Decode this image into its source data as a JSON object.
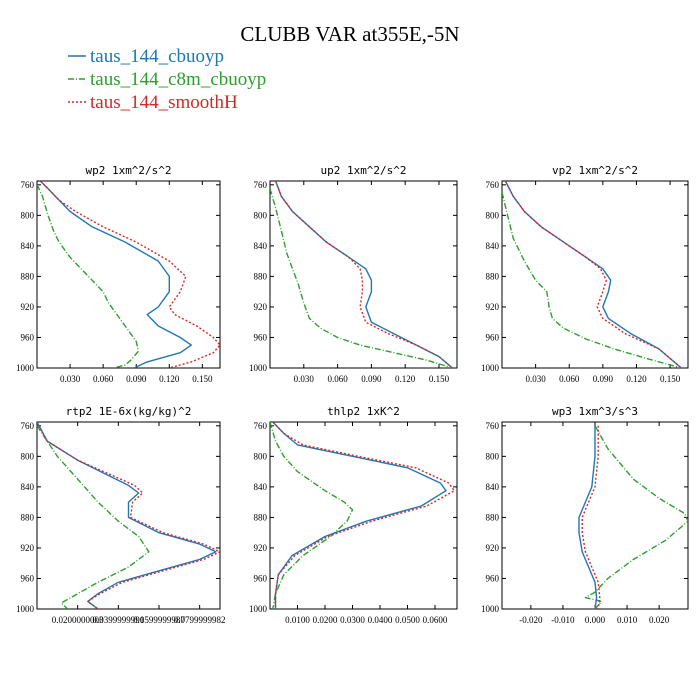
{
  "figure": {
    "title": "CLUBB VAR at355E,-5N",
    "legend": [
      {
        "label": "taus_144_cbuoyp",
        "color": "#1f77b4",
        "dash": "solid"
      },
      {
        "label": "taus_144_c8m_cbuoyp",
        "color": "#2ca02c",
        "dash": "dashdot"
      },
      {
        "label": "taus_144_smoothH",
        "color": "#d62728",
        "dash": "dotted"
      }
    ]
  },
  "chart_data": [
    {
      "type": "line",
      "title": "wp2",
      "units": "1xm^2/s^2",
      "xlim": [
        0.0,
        0.166
      ],
      "ylim": [
        755,
        1000
      ],
      "xticks": [
        0.03,
        0.06,
        0.09,
        0.12,
        0.15
      ],
      "xtick_labels": [
        "0.030",
        "0.060",
        "0.090",
        "0.120",
        "0.150"
      ],
      "yticks": [
        760,
        800,
        840,
        880,
        920,
        960,
        1000
      ],
      "series": [
        {
          "name": "taus_144_cbuoyp",
          "x": [
            0.003,
            0.01,
            0.02,
            0.03,
            0.05,
            0.08,
            0.11,
            0.12,
            0.12,
            0.11,
            0.1,
            0.11,
            0.13,
            0.14,
            0.13,
            0.1,
            0.088
          ],
          "y": [
            755,
            765,
            780,
            795,
            815,
            835,
            860,
            880,
            900,
            920,
            930,
            945,
            960,
            970,
            980,
            992,
            1000
          ]
        },
        {
          "name": "taus_144_c8m_cbuoyp",
          "x": [
            0.0,
            0.005,
            0.01,
            0.015,
            0.02,
            0.03,
            0.04,
            0.05,
            0.06,
            0.065,
            0.07,
            0.075,
            0.08,
            0.085,
            0.09,
            0.092,
            0.085,
            0.08,
            0.07
          ],
          "y": [
            760,
            775,
            800,
            820,
            835,
            855,
            870,
            885,
            900,
            915,
            925,
            935,
            945,
            955,
            965,
            978,
            990,
            996,
            1000
          ]
        },
        {
          "name": "taus_144_smoothH",
          "x": [
            0.003,
            0.01,
            0.02,
            0.035,
            0.06,
            0.09,
            0.12,
            0.135,
            0.13,
            0.12,
            0.125,
            0.145,
            0.16,
            0.166,
            0.16,
            0.14,
            0.12
          ],
          "y": [
            755,
            765,
            780,
            795,
            815,
            835,
            860,
            880,
            900,
            920,
            930,
            945,
            960,
            970,
            980,
            992,
            1000
          ]
        }
      ]
    },
    {
      "type": "line",
      "title": "up2",
      "units": "1xm^2/s^2",
      "xlim": [
        0.0,
        0.166
      ],
      "ylim": [
        755,
        1000
      ],
      "xticks": [
        0.03,
        0.06,
        0.09,
        0.12,
        0.15
      ],
      "xtick_labels": [
        "0.030",
        "0.060",
        "0.090",
        "0.120",
        "0.150"
      ],
      "yticks": [
        760,
        800,
        840,
        880,
        920,
        960,
        1000
      ],
      "series": [
        {
          "name": "taus_144_cbuoyp",
          "x": [
            0.005,
            0.01,
            0.02,
            0.035,
            0.05,
            0.07,
            0.085,
            0.09,
            0.09,
            0.085,
            0.09,
            0.11,
            0.13,
            0.15,
            0.162
          ],
          "y": [
            755,
            775,
            795,
            815,
            835,
            855,
            870,
            885,
            900,
            920,
            940,
            955,
            970,
            985,
            1000
          ]
        },
        {
          "name": "taus_144_c8m_cbuoyp",
          "x": [
            0.0,
            0.005,
            0.01,
            0.015,
            0.02,
            0.025,
            0.03,
            0.035,
            0.045,
            0.06,
            0.08,
            0.11,
            0.14,
            0.162
          ],
          "y": [
            765,
            790,
            820,
            850,
            870,
            890,
            915,
            935,
            948,
            960,
            970,
            980,
            990,
            1000
          ]
        },
        {
          "name": "taus_144_smoothH",
          "x": [
            0.005,
            0.01,
            0.02,
            0.035,
            0.05,
            0.07,
            0.08,
            0.082,
            0.082,
            0.08,
            0.085,
            0.105,
            0.13,
            0.15,
            0.162
          ],
          "y": [
            755,
            775,
            795,
            815,
            835,
            855,
            870,
            885,
            900,
            920,
            940,
            955,
            970,
            985,
            1000
          ]
        }
      ]
    },
    {
      "type": "line",
      "title": "vp2",
      "units": "1xm^2/s^2",
      "xlim": [
        0.0,
        0.166
      ],
      "ylim": [
        755,
        1000
      ],
      "xticks": [
        0.03,
        0.06,
        0.09,
        0.12,
        0.15
      ],
      "xtick_labels": [
        "0.030",
        "0.060",
        "0.090",
        "0.120",
        "0.150"
      ],
      "yticks": [
        760,
        800,
        840,
        880,
        920,
        960,
        1000
      ],
      "series": [
        {
          "name": "taus_144_cbuoyp",
          "x": [
            0.003,
            0.01,
            0.02,
            0.035,
            0.055,
            0.075,
            0.09,
            0.097,
            0.095,
            0.09,
            0.095,
            0.115,
            0.14,
            0.16
          ],
          "y": [
            755,
            775,
            795,
            815,
            835,
            855,
            870,
            885,
            900,
            920,
            935,
            955,
            975,
            1000
          ]
        },
        {
          "name": "taus_144_c8m_cbuoyp",
          "x": [
            0.0,
            0.005,
            0.01,
            0.02,
            0.03,
            0.04,
            0.042,
            0.045,
            0.055,
            0.075,
            0.1,
            0.13,
            0.16
          ],
          "y": [
            770,
            800,
            830,
            860,
            885,
            900,
            920,
            935,
            948,
            962,
            975,
            988,
            1000
          ]
        },
        {
          "name": "taus_144_smoothH",
          "x": [
            0.003,
            0.01,
            0.02,
            0.035,
            0.055,
            0.075,
            0.088,
            0.093,
            0.09,
            0.085,
            0.09,
            0.11,
            0.14,
            0.16
          ],
          "y": [
            755,
            775,
            795,
            815,
            835,
            855,
            870,
            885,
            900,
            920,
            935,
            955,
            975,
            1000
          ]
        }
      ]
    },
    {
      "type": "line",
      "title": "rtp2",
      "units": "1E-6x(kg/kg)^2",
      "xlim": [
        0.0,
        0.09
      ],
      "ylim": [
        755,
        1000
      ],
      "xticks": [
        0.02,
        0.04,
        0.06,
        0.08
      ],
      "xtick_labels": [
        "0.0200000003",
        "0.0399999991",
        "0.0599999987",
        "0.0799999982"
      ],
      "yticks": [
        760,
        800,
        840,
        880,
        920,
        960,
        1000
      ],
      "series": [
        {
          "name": "taus_144_cbuoyp",
          "x": [
            0.0,
            0.005,
            0.02,
            0.035,
            0.045,
            0.05,
            0.045,
            0.045,
            0.06,
            0.08,
            0.088,
            0.08,
            0.06,
            0.04,
            0.03,
            0.025,
            0.03
          ],
          "y": [
            755,
            780,
            805,
            825,
            838,
            848,
            860,
            880,
            900,
            915,
            925,
            935,
            950,
            965,
            980,
            990,
            1000
          ]
        },
        {
          "name": "taus_144_c8m_cbuoyp",
          "x": [
            0.0,
            0.005,
            0.01,
            0.02,
            0.03,
            0.04,
            0.05,
            0.055,
            0.045,
            0.03,
            0.02,
            0.012,
            0.015
          ],
          "y": [
            760,
            780,
            800,
            830,
            860,
            885,
            905,
            925,
            945,
            965,
            980,
            992,
            1000
          ]
        },
        {
          "name": "taus_144_smoothH",
          "x": [
            0.0,
            0.005,
            0.02,
            0.037,
            0.048,
            0.052,
            0.047,
            0.046,
            0.062,
            0.082,
            0.09,
            0.082,
            0.062,
            0.042,
            0.031,
            0.025,
            0.03
          ],
          "y": [
            755,
            780,
            805,
            825,
            838,
            848,
            860,
            880,
            900,
            915,
            925,
            935,
            950,
            965,
            980,
            990,
            1000
          ]
        }
      ]
    },
    {
      "type": "line",
      "title": "thlp2",
      "units": "1xK^2",
      "xlim": [
        0.0,
        0.068
      ],
      "ylim": [
        755,
        1000
      ],
      "xticks": [
        0.01,
        0.02,
        0.03,
        0.04,
        0.05,
        0.06
      ],
      "xtick_labels": [
        "0.0100",
        "0.0200",
        "0.0300",
        "0.0400",
        "0.0500",
        "0.0600"
      ],
      "yticks": [
        760,
        800,
        840,
        880,
        920,
        960,
        1000
      ],
      "series": [
        {
          "name": "taus_144_cbuoyp",
          "x": [
            0.001,
            0.005,
            0.01,
            0.03,
            0.05,
            0.062,
            0.064,
            0.055,
            0.035,
            0.02,
            0.008,
            0.003,
            0.002,
            0.002
          ],
          "y": [
            755,
            770,
            785,
            800,
            815,
            835,
            845,
            865,
            885,
            905,
            930,
            955,
            980,
            1000
          ]
        },
        {
          "name": "taus_144_c8m_cbuoyp",
          "x": [
            0.0,
            0.002,
            0.005,
            0.01,
            0.02,
            0.027,
            0.03,
            0.028,
            0.022,
            0.012,
            0.005,
            0.002,
            0.001
          ],
          "y": [
            755,
            780,
            800,
            820,
            845,
            860,
            870,
            885,
            905,
            930,
            955,
            980,
            1000
          ]
        },
        {
          "name": "taus_144_smoothH",
          "x": [
            0.001,
            0.005,
            0.012,
            0.032,
            0.053,
            0.065,
            0.067,
            0.057,
            0.037,
            0.021,
            0.009,
            0.003,
            0.002,
            0.002
          ],
          "y": [
            755,
            770,
            785,
            800,
            815,
            835,
            845,
            865,
            885,
            905,
            930,
            955,
            980,
            1000
          ]
        }
      ]
    },
    {
      "type": "line",
      "title": "wp3",
      "units": "1xm^3/s^3",
      "xlim": [
        -0.029,
        0.029
      ],
      "ylim": [
        755,
        1000
      ],
      "xticks": [
        -0.02,
        -0.01,
        0.0,
        0.01,
        0.02
      ],
      "xtick_labels": [
        "-0.020",
        "-0.010",
        "0.000",
        "0.010",
        "0.020"
      ],
      "yticks": [
        760,
        800,
        840,
        880,
        920,
        960,
        1000
      ],
      "series": [
        {
          "name": "taus_144_cbuoyp",
          "x": [
            0.0,
            0.0,
            -0.001,
            -0.003,
            -0.005,
            -0.005,
            -0.004,
            -0.002,
            0.0,
            0.0005,
            0.0
          ],
          "y": [
            760,
            800,
            840,
            860,
            880,
            900,
            925,
            945,
            965,
            985,
            1000
          ]
        },
        {
          "name": "taus_144_c8m_cbuoyp",
          "x": [
            0.0,
            0.004,
            0.012,
            0.02,
            0.028,
            0.029,
            0.022,
            0.012,
            0.004,
            0.0,
            -0.003,
            0.002,
            0.0
          ],
          "y": [
            760,
            790,
            830,
            855,
            875,
            885,
            910,
            935,
            960,
            978,
            985,
            990,
            1000
          ]
        },
        {
          "name": "taus_144_smoothH",
          "x": [
            0.001,
            0.001,
            0.0,
            -0.002,
            -0.004,
            -0.004,
            -0.003,
            -0.001,
            0.001,
            0.0015,
            0.001
          ],
          "y": [
            760,
            800,
            840,
            860,
            880,
            900,
            925,
            945,
            965,
            985,
            1000
          ]
        }
      ]
    }
  ]
}
